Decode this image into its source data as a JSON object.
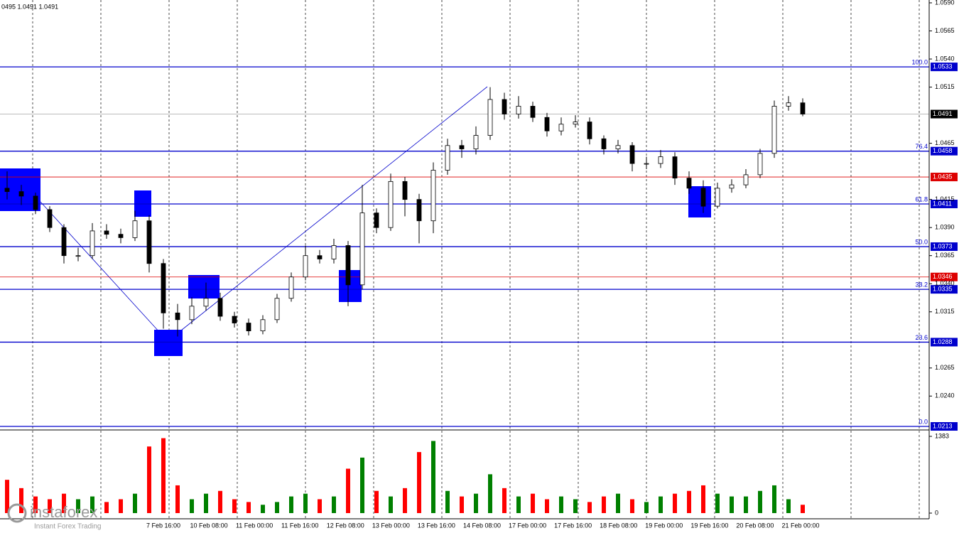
{
  "chart_data": {
    "type": "candlestick",
    "header": "0495 1.0491 1.0491",
    "ylim": [
      1.0213,
      1.059
    ],
    "yticks": [
      {
        "value": 1.059,
        "label": "1.0590"
      },
      1.0565,
      {
        "value": 1.054,
        "label": "1.0540"
      },
      1.0515,
      1.0465,
      1.0415,
      {
        "value": 1.039,
        "label": "1.0390"
      },
      1.0365,
      {
        "value": 1.034,
        "label": "1.0340"
      },
      1.0315,
      1.0265,
      {
        "value": 1.024,
        "label": "1.0240"
      }
    ],
    "time_labels": [
      "7 Feb 16:00",
      "10 Feb 08:00",
      "11 Feb 00:00",
      "11 Feb 16:00",
      "12 Feb 08:00",
      "13 Feb 00:00",
      "13 Feb 16:00",
      "14 Feb 08:00",
      "17 Feb 00:00",
      "17 Feb 16:00",
      "18 Feb 08:00",
      "19 Feb 00:00",
      "19 Feb 16:00",
      "20 Feb 08:00",
      "21 Feb 00:00"
    ],
    "open": [
      1.0425,
      1.0422,
      1.0418,
      1.0406,
      1.039,
      1.0365,
      1.0365,
      1.0387,
      1.0384,
      1.0381,
      1.0396,
      1.0358,
      1.0314,
      1.0308,
      1.032,
      1.0327,
      1.0311,
      1.0305,
      1.0298,
      1.0308,
      1.0327,
      1.0346,
      1.0365,
      1.0362,
      1.0374,
      1.0339,
      1.0403,
      1.039,
      1.0431,
      1.0415,
      1.0396,
      1.0441,
      1.0463,
      1.046,
      1.0472,
      1.0504,
      1.0491,
      1.0498,
      1.0488,
      1.0476,
      1.0482,
      1.0484,
      1.0469,
      1.046,
      1.0463,
      1.0447,
      1.0447,
      1.0453,
      1.0434,
      1.0425,
      1.0409,
      1.0425,
      1.0428,
      1.0437,
      1.0456,
      1.0498,
      1.0501
    ],
    "high": [
      1.044,
      1.0428,
      1.0421,
      1.0409,
      1.0393,
      1.0372,
      1.0394,
      1.0393,
      1.0389,
      1.0405,
      1.0401,
      1.0362,
      1.0322,
      1.0328,
      1.0341,
      1.0332,
      1.0315,
      1.0309,
      1.0312,
      1.0331,
      1.035,
      1.0374,
      1.037,
      1.038,
      1.0378,
      1.0428,
      1.0407,
      1.0438,
      1.0435,
      1.042,
      1.0448,
      1.0469,
      1.0468,
      1.048,
      1.0515,
      1.051,
      1.0507,
      1.0502,
      1.0492,
      1.0488,
      1.049,
      1.0488,
      1.0472,
      1.0468,
      1.0466,
      1.0453,
      1.0459,
      1.0457,
      1.044,
      1.0432,
      1.043,
      1.0433,
      1.0442,
      1.046,
      1.0503,
      1.0507,
      1.0505
    ],
    "low": [
      1.0415,
      1.041,
      1.0402,
      1.0386,
      1.0358,
      1.036,
      1.0362,
      1.038,
      1.0376,
      1.0378,
      1.035,
      1.03,
      1.0293,
      1.0304,
      1.0316,
      1.0307,
      1.0301,
      1.0294,
      1.0295,
      1.0305,
      1.0324,
      1.0343,
      1.0358,
      1.0358,
      1.032,
      1.0335,
      1.0385,
      1.0387,
      1.04,
      1.0376,
      1.0385,
      1.0437,
      1.0452,
      1.0455,
      1.0468,
      1.0486,
      1.0487,
      1.0484,
      1.0471,
      1.0472,
      1.0479,
      1.0464,
      1.0455,
      1.0456,
      1.044,
      1.0442,
      1.0443,
      1.0428,
      1.042,
      1.0403,
      1.0407,
      1.0421,
      1.0425,
      1.0434,
      1.0452,
      1.0494,
      1.0489
    ],
    "close": [
      1.0422,
      1.0418,
      1.0406,
      1.039,
      1.0365,
      1.0365,
      1.0387,
      1.0384,
      1.0381,
      1.0396,
      1.0358,
      1.0314,
      1.0308,
      1.032,
      1.0327,
      1.0311,
      1.0305,
      1.0298,
      1.0308,
      1.0327,
      1.0346,
      1.0365,
      1.0362,
      1.0374,
      1.0339,
      1.0403,
      1.039,
      1.0431,
      1.0415,
      1.0396,
      1.0441,
      1.0463,
      1.046,
      1.0472,
      1.0504,
      1.0491,
      1.0498,
      1.0488,
      1.0476,
      1.0482,
      1.0484,
      1.0469,
      1.046,
      1.0463,
      1.0447,
      1.0447,
      1.0453,
      1.0434,
      1.0425,
      1.0409,
      1.0425,
      1.0428,
      1.0437,
      1.0456,
      1.0498,
      1.0501,
      1.0491
    ],
    "volume": [
      600,
      450,
      300,
      250,
      350,
      250,
      300,
      200,
      250,
      350,
      1200,
      1350,
      500,
      250,
      350,
      400,
      250,
      200,
      150,
      200,
      300,
      350,
      250,
      300,
      800,
      1000,
      400,
      300,
      450,
      1100,
      1300,
      400,
      300,
      350,
      700,
      450,
      300,
      350,
      250,
      300,
      250,
      200,
      300,
      350,
      250,
      200,
      300,
      350,
      400,
      500,
      350,
      300,
      300,
      400,
      500,
      250,
      150
    ],
    "volume_ylim": [
      0,
      1383
    ],
    "volume_yticks": [
      1383,
      0
    ],
    "up_color": "#008000",
    "down_color": "#ff0000",
    "levels": [
      {
        "price": 1.0533,
        "fibo": "100.0",
        "color": "#0000cc"
      },
      {
        "price": 1.0458,
        "fibo": "76.4",
        "color": "#0000cc"
      },
      {
        "price": 1.0411,
        "fibo": "61.8",
        "color": "#0000cc"
      },
      {
        "price": 1.0373,
        "fibo": "50.0",
        "color": "#0000cc"
      },
      {
        "price": 1.0335,
        "fibo": "38.2",
        "color": "#0000cc"
      },
      {
        "price": 1.0288,
        "fibo": "23.6",
        "color": "#0000cc"
      },
      {
        "price": 1.0213,
        "fibo": "0.0",
        "color": "#0000cc"
      },
      {
        "price": 1.0435,
        "color": "#dd0000"
      },
      {
        "price": 1.0346,
        "color": "#dd0000"
      },
      {
        "price": 1.0491,
        "color": "#000000"
      }
    ],
    "logo": {
      "name": "instaforex",
      "tagline": "Instant Forex Trading"
    }
  }
}
